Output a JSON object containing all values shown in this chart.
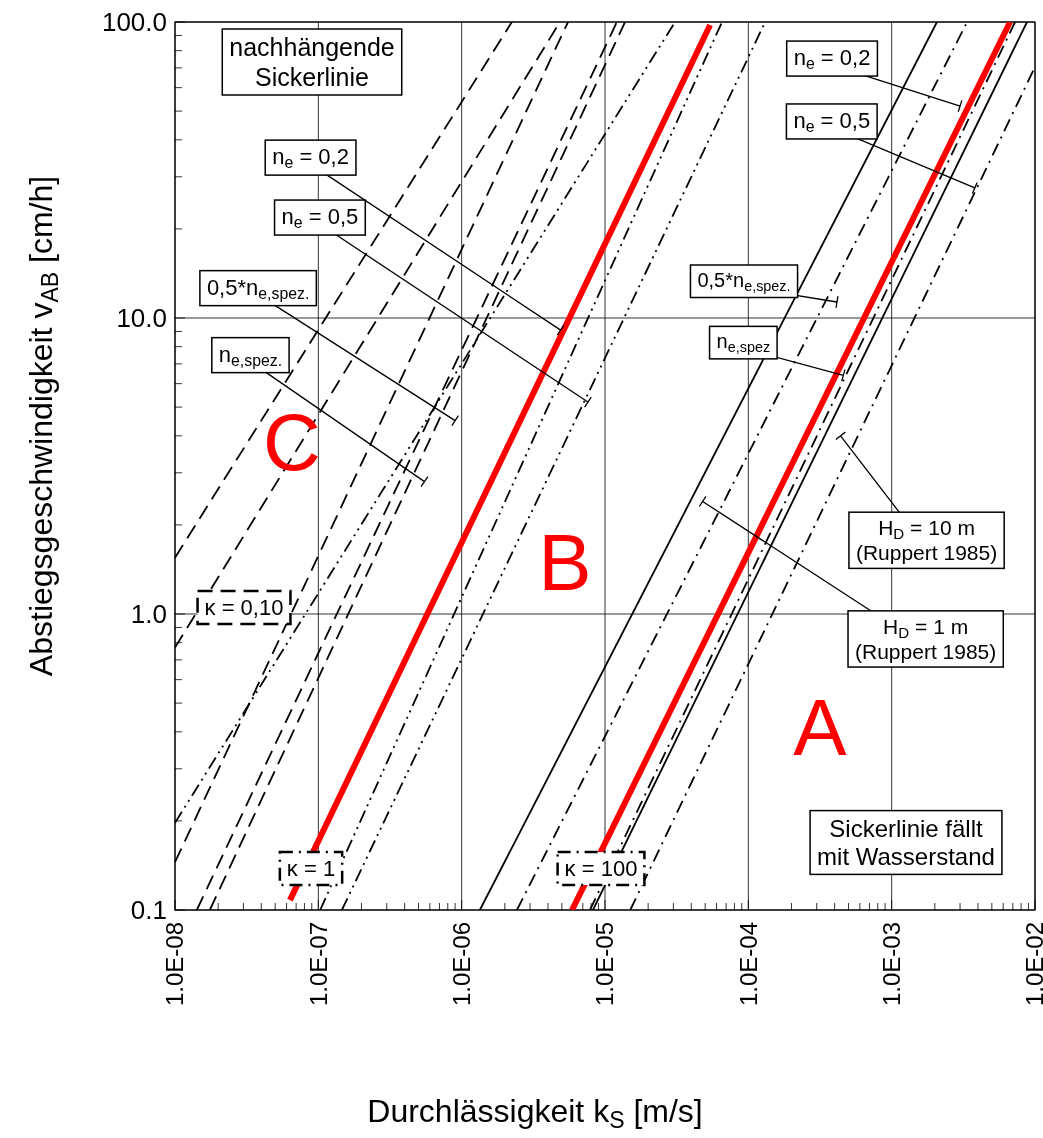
{
  "chart_data": {
    "type": "line",
    "xlabel": "Durchlässigkeit k$_{S}$ [m/s]",
    "ylabel": "Abstiegsgeschwindigkeit v$_{AB}$ [cm/h]",
    "log": "xy",
    "grid": true,
    "xlim": [
      1e-08,
      0.01
    ],
    "xticks": [
      {
        "value": 1e-08,
        "label": "1.0E-08"
      },
      {
        "value": 2e-08,
        "label": null
      },
      {
        "value": 3e-08,
        "label": null
      },
      {
        "value": 4e-08,
        "label": null
      },
      {
        "value": 5e-08,
        "label": null
      },
      {
        "value": 6e-08,
        "label": null
      },
      {
        "value": 7e-08,
        "label": null
      },
      {
        "value": 8e-08,
        "label": null
      },
      {
        "value": 9e-08,
        "label": null
      },
      {
        "value": 1e-07,
        "label": "1.0E-07"
      },
      {
        "value": 2e-07,
        "label": null
      },
      {
        "value": 3e-07,
        "label": null
      },
      {
        "value": 4e-07,
        "label": null
      },
      {
        "value": 5e-07,
        "label": null
      },
      {
        "value": 6e-07,
        "label": null
      },
      {
        "value": 7e-07,
        "label": null
      },
      {
        "value": 8e-07,
        "label": null
      },
      {
        "value": 9e-07,
        "label": null
      },
      {
        "value": 1e-06,
        "label": "1.0E-06"
      },
      {
        "value": 2e-06,
        "label": null
      },
      {
        "value": 3e-06,
        "label": null
      },
      {
        "value": 4e-06,
        "label": null
      },
      {
        "value": 5e-06,
        "label": null
      },
      {
        "value": 6e-06,
        "label": null
      },
      {
        "value": 7e-06,
        "label": null
      },
      {
        "value": 8e-06,
        "label": null
      },
      {
        "value": 9e-06,
        "label": null
      },
      {
        "value": 1e-05,
        "label": "1.0E-05"
      },
      {
        "value": 2e-05,
        "label": null
      },
      {
        "value": 3e-05,
        "label": null
      },
      {
        "value": 4e-05,
        "label": null
      },
      {
        "value": 5e-05,
        "label": null
      },
      {
        "value": 6e-05,
        "label": null
      },
      {
        "value": 7e-05,
        "label": null
      },
      {
        "value": 8e-05,
        "label": null
      },
      {
        "value": 9e-05,
        "label": null
      },
      {
        "value": 0.0001,
        "label": "1.0E-04"
      },
      {
        "value": 0.0002,
        "label": null
      },
      {
        "value": 0.0003,
        "label": null
      },
      {
        "value": 0.0004,
        "label": null
      },
      {
        "value": 0.0005,
        "label": null
      },
      {
        "value": 0.0006,
        "label": null
      },
      {
        "value": 0.0007,
        "label": null
      },
      {
        "value": 0.0008,
        "label": null
      },
      {
        "value": 0.0009,
        "label": null
      },
      {
        "value": 0.001,
        "label": "1.0E-03"
      },
      {
        "value": 0.002,
        "label": null
      },
      {
        "value": 0.003,
        "label": null
      },
      {
        "value": 0.004,
        "label": null
      },
      {
        "value": 0.005,
        "label": null
      },
      {
        "value": 0.006,
        "label": null
      },
      {
        "value": 0.007,
        "label": null
      },
      {
        "value": 0.008,
        "label": null
      },
      {
        "value": 0.009,
        "label": null
      },
      {
        "value": 0.01,
        "label": "1.0E-02"
      }
    ],
    "ylim": [
      0.1,
      100
    ],
    "yticks": [
      {
        "value": 0.1,
        "label": "0.1"
      },
      {
        "value": 0.2,
        "label": null
      },
      {
        "value": 0.3,
        "label": null
      },
      {
        "value": 0.4,
        "label": null
      },
      {
        "value": 0.5,
        "label": null
      },
      {
        "value": 0.6,
        "label": null
      },
      {
        "value": 0.7,
        "label": null
      },
      {
        "value": 0.8,
        "label": null
      },
      {
        "value": 0.9,
        "label": null
      },
      {
        "value": 1,
        "label": "1.0"
      },
      {
        "value": 2,
        "label": null
      },
      {
        "value": 3,
        "label": null
      },
      {
        "value": 4,
        "label": null
      },
      {
        "value": 5,
        "label": null
      },
      {
        "value": 6,
        "label": null
      },
      {
        "value": 7,
        "label": null
      },
      {
        "value": 8,
        "label": null
      },
      {
        "value": 9,
        "label": null
      },
      {
        "value": 10,
        "label": "10.0"
      },
      {
        "value": 20,
        "label": null
      },
      {
        "value": 30,
        "label": null
      },
      {
        "value": 40,
        "label": null
      },
      {
        "value": 50,
        "label": null
      },
      {
        "value": 60,
        "label": null
      },
      {
        "value": 70,
        "label": null
      },
      {
        "value": 80,
        "label": null
      },
      {
        "value": 90,
        "label": null
      },
      {
        "value": 100,
        "label": "100.0"
      }
    ],
    "series": [
      {
        "color": "#000000",
        "line_style": "dashed",
        "x": [
          1e-08,
          2.24e-06
        ],
        "values": [
          1.55,
          100
        ]
      },
      {
        "color": "#000000",
        "line_style": "dashed",
        "x": [
          1e-08,
          4.85e-06
        ],
        "values": [
          0.77,
          100
        ]
      },
      {
        "color": "#000000",
        "line_style": "dashed",
        "x": [
          1e-08,
          5.52e-06
        ],
        "values": [
          0.145,
          100
        ]
      },
      {
        "color": "#000000",
        "line_style": "dashed",
        "x": [
          1.42e-08,
          1.21e-05
        ],
        "values": [
          0.1,
          100
        ]
      },
      {
        "color": "#000000",
        "line_style": "dashed",
        "x": [
          1.75e-08,
          1.38e-05
        ],
        "values": [
          0.1,
          100
        ]
      },
      {
        "color": "#000000",
        "line_style": "dashdotdot",
        "x": [
          1e-08,
          3.08e-05
        ],
        "values": [
          0.197,
          100
        ]
      },
      {
        "color": "#000000",
        "line_style": "dashdotdot",
        "x": [
          1.03e-07,
          6.55e-05
        ],
        "values": [
          0.1,
          100
        ]
      },
      {
        "color": "#000000",
        "line_style": "dashdotdot",
        "x": [
          1.46e-07,
          0.000131
        ],
        "values": [
          0.1,
          100
        ]
      },
      {
        "color": "#000000",
        "line_style": "solid",
        "x": [
          1.34e-06,
          0.00207
        ],
        "values": [
          0.1,
          100
        ]
      },
      {
        "color": "#000000",
        "line_style": "dashdot",
        "x": [
          2.43e-06,
          0.00336
        ],
        "values": [
          0.1,
          100
        ]
      },
      {
        "color": "#000000",
        "line_style": "dashdot",
        "x": [
          7.85e-06,
          0.00726
        ],
        "values": [
          0.1,
          100
        ]
      },
      {
        "color": "#000000",
        "line_style": "solid",
        "x": [
          8.24e-06,
          0.00879
        ],
        "values": [
          0.1,
          100
        ]
      },
      {
        "color": "#000000",
        "line_style": "dashdot",
        "x": [
          1.5e-05,
          0.01
        ],
        "values": [
          0.1,
          70.5
        ]
      },
      {
        "color": "#ff0000",
        "line_style": "solid",
        "x": [
          6.34e-08,
          5.41e-05
        ],
        "values": [
          0.108,
          97.7
        ]
      },
      {
        "color": "#ff0000",
        "line_style": "solid",
        "x": [
          5.89e-06,
          0.0067
        ],
        "values": [
          0.1,
          100
        ]
      }
    ],
    "annotations": [
      "nachhängende\nSickerlinie",
      {
        "text": "n$_{e}$ = 0,2",
        "x": 4.9e-06,
        "y": 9.1
      },
      {
        "text": "n$_{e}$ = 0,5",
        "x": 7.6e-06,
        "y": 5.2
      },
      {
        "text": "0,5*n$_{e,spez.}$",
        "x": 9e-07,
        "y": 4.5
      },
      {
        "text": "n$_{e,spez.}$",
        "x": 5.5e-07,
        "y": 2.8
      },
      "κ = 0,10",
      "κ = 1",
      "C",
      "B",
      "κ = 100",
      {
        "text": "n$_{e}$ = 0,2",
        "x": 0.003,
        "y": 52
      },
      {
        "text": "n$_{e}$ = 0,5",
        "x": 0.0038,
        "y": 27.5
      },
      "0,5*n$_{e,spez.}$",
      {
        "text": "n$_{e,spez}$",
        "x": 0.00046,
        "y": 6.4
      },
      {
        "text": "H$_{D}$ = 10 m\n(Ruppert 1985)",
        "x": 0.00044,
        "y": 4
      },
      {
        "text": "H$_{D}$ = 1 m\n(Ruppert 1985)",
        "x": 4.8e-05,
        "y": 2.4
      },
      "A",
      "Sickerlinie fällt\nmit Wasserstand"
    ]
  }
}
